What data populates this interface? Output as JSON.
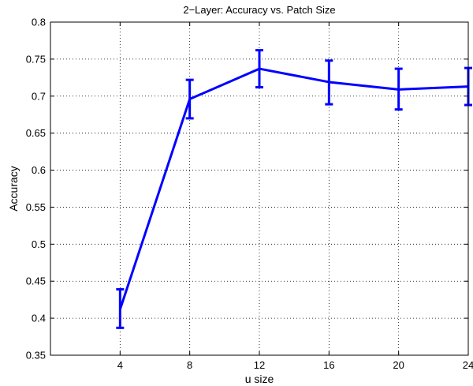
{
  "chart_data": {
    "type": "line",
    "title": "2−Layer: Accuracy vs. Patch Size",
    "xlabel": "u size",
    "ylabel": "Accuracy",
    "x": [
      4,
      8,
      12,
      16,
      20,
      24
    ],
    "xlim": [
      0,
      24
    ],
    "xticks": [
      "4",
      "8",
      "12",
      "16",
      "20",
      "24"
    ],
    "ylim": [
      0.35,
      0.8
    ],
    "yticks": [
      "0.35",
      "0.4",
      "0.45",
      "0.5",
      "0.55",
      "0.6",
      "0.65",
      "0.7",
      "0.75",
      "0.8"
    ],
    "grid": true,
    "series": [
      {
        "values": [
          0.412,
          0.696,
          0.737,
          0.719,
          0.709,
          0.713
        ],
        "error_low": [
          0.387,
          0.67,
          0.712,
          0.689,
          0.682,
          0.688
        ],
        "error_high": [
          0.439,
          0.722,
          0.762,
          0.748,
          0.737,
          0.738
        ],
        "color": "#0000ff"
      }
    ]
  }
}
